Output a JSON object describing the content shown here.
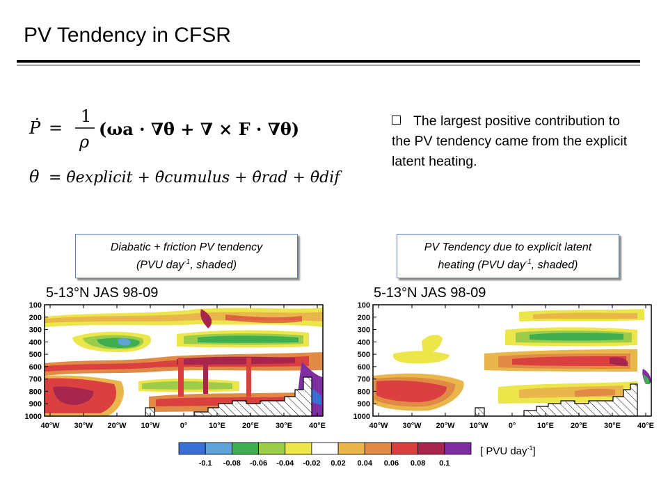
{
  "title": "PV Tendency in CFSR",
  "note": {
    "text": "The largest positive contribution to the PV tendency came from the explicit latent heating."
  },
  "equations": {
    "eq1_lhs": "Ṗ",
    "eq1_rhs_prefix": "1",
    "eq1_rhs_den": "ρ",
    "eq1_body": "(ωa · ∇θ̇ + ∇ × F · ∇θ)",
    "eq2_lhs": "θ̇",
    "eq2_rhs": "= θ̇explicit + θ̇cumulus + θ̇rad + θ̇dif"
  },
  "captions": {
    "left_line1": "Diabatic + friction PV tendency",
    "left_line2_pre": "(PVU day",
    "left_line2_sup": "-1",
    "left_line2_post": ", shaded)",
    "right_line1": "PV Tendency due to explicit latent",
    "right_line2_pre": "heating (PVU day",
    "right_line2_sup": "-1",
    "right_line2_post": ", shaded)"
  },
  "panels": {
    "left_label": "5-13°N JAS 98-09",
    "right_label": "5-13°N JAS 98-09",
    "y_ticks": [
      "100",
      "200",
      "300",
      "400",
      "500",
      "600",
      "700",
      "800",
      "900",
      "1000"
    ],
    "x_ticks": [
      "40°W",
      "30°W",
      "20°W",
      "10°W",
      "0°",
      "10°E",
      "20°E",
      "30°E",
      "40°E"
    ]
  },
  "colorbar": {
    "labels": [
      "-0.1",
      "-0.08",
      "-0.06",
      "-0.04",
      "-0.02",
      "0.02",
      "0.04",
      "0.06",
      "0.08",
      "0.1"
    ],
    "colors": [
      "#3a6fd6",
      "#5fa2d8",
      "#3fae50",
      "#9ccc4a",
      "#ece64b",
      "#ffffff",
      "#e8b64a",
      "#e08a46",
      "#d9403f",
      "#a8264d",
      "#7e2ea0"
    ]
  },
  "units": {
    "pre": "[ PVU day",
    "sup": "-1",
    "post": "]"
  }
}
